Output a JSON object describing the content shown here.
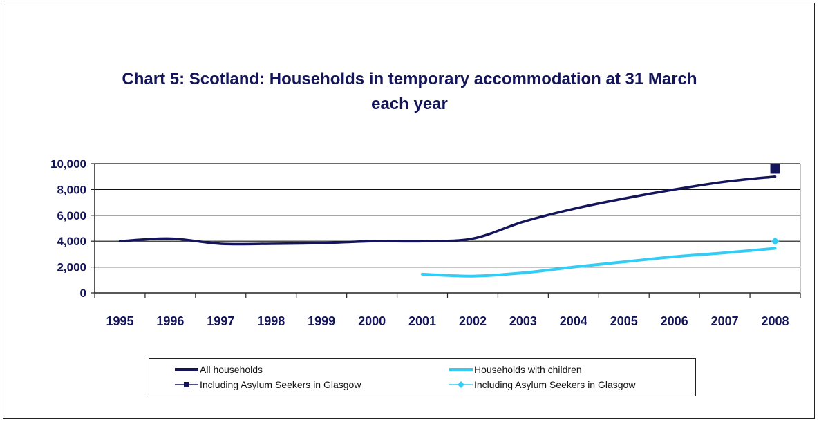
{
  "title_line1": "Chart 5:   Scotland:   Households in temporary accommodation at 31 March",
  "title_line2": "each year",
  "colors": {
    "dark": "#14145a",
    "light": "#33ccf5",
    "axis": "#222222"
  },
  "legend": {
    "all_households": "All households",
    "households_with_children": "Households with children",
    "asylum_dark": "Including Asylum Seekers in Glasgow",
    "asylum_light": "Including Asylum Seekers in Glasgow"
  },
  "chart_data": {
    "type": "line",
    "categories": [
      "1995",
      "1996",
      "1997",
      "1998",
      "1999",
      "2000",
      "2001",
      "2002",
      "2003",
      "2004",
      "2005",
      "2006",
      "2007",
      "2008"
    ],
    "ylim": [
      0,
      10000
    ],
    "yticks": [
      0,
      2000,
      4000,
      6000,
      8000,
      10000
    ],
    "ytick_labels": [
      "0",
      "2,000",
      "4,000",
      "6,000",
      "8,000",
      "10,000"
    ],
    "grid": true,
    "legend_position": "bottom",
    "series": [
      {
        "name": "All households",
        "values": [
          4000,
          4200,
          3800,
          3800,
          3850,
          4000,
          4000,
          4200,
          5500,
          6500,
          7300,
          8000,
          8600,
          9000
        ]
      },
      {
        "name": "Households with children",
        "values": [
          null,
          null,
          null,
          null,
          null,
          null,
          1450,
          1300,
          1550,
          2000,
          2400,
          2800,
          3100,
          3450
        ]
      },
      {
        "name": "Including Asylum Seekers in Glasgow",
        "values": [
          null,
          null,
          null,
          null,
          null,
          null,
          null,
          null,
          null,
          null,
          null,
          null,
          null,
          9600
        ]
      },
      {
        "name": "Including Asylum Seekers in Glasgow",
        "values": [
          null,
          null,
          null,
          null,
          null,
          null,
          null,
          null,
          null,
          null,
          null,
          null,
          null,
          4000
        ]
      }
    ]
  }
}
